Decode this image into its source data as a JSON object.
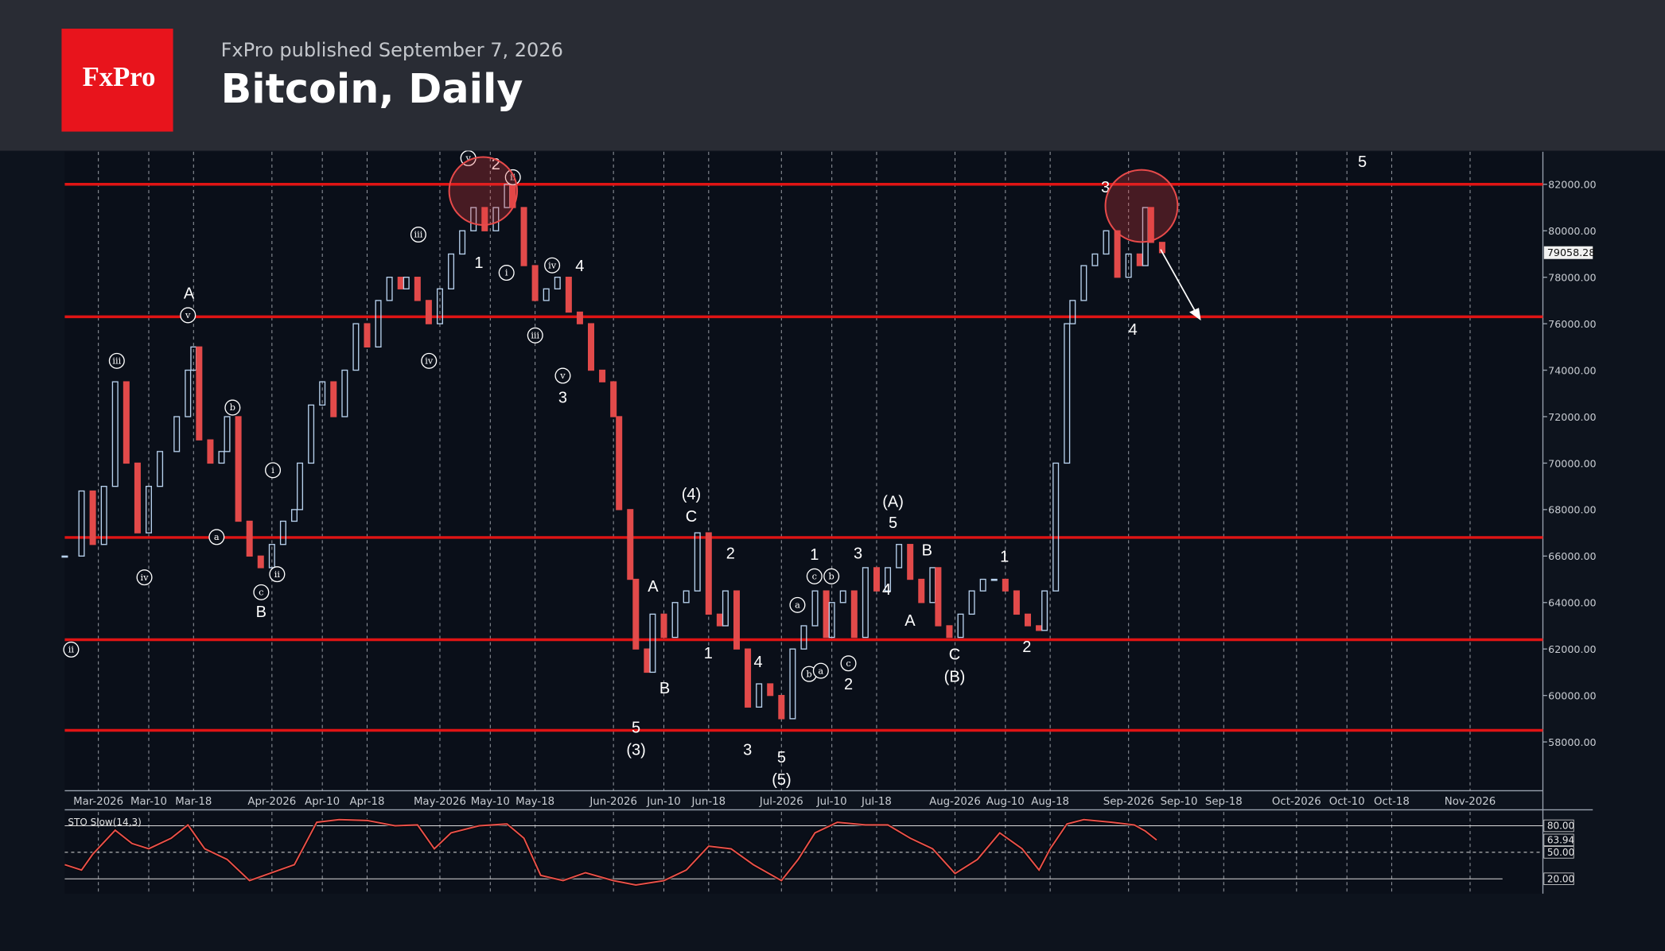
{
  "header": {
    "logo": "FxPro",
    "published": "FxPro published September 7, 2026",
    "title": "Bitcoin, Daily"
  },
  "chart_data": [
    {
      "type": "candlestick",
      "up_color": "#b8d2ee",
      "down_color": "#e24a4a",
      "level_color": "#e01414",
      "xlim": [
        54,
        318
      ],
      "ylim": [
        55900,
        83400
      ],
      "xticks": [
        {
          "value": 60,
          "label": "Mar-2026"
        },
        {
          "value": 69,
          "label": "Mar-10"
        },
        {
          "value": 77,
          "label": "Mar-18"
        },
        {
          "value": 91,
          "label": "Apr-2026"
        },
        {
          "value": 100,
          "label": "Apr-10"
        },
        {
          "value": 108,
          "label": "Apr-18"
        },
        {
          "value": 121,
          "label": "May-2026"
        },
        {
          "value": 130,
          "label": "May-10"
        },
        {
          "value": 138,
          "label": "May-18"
        },
        {
          "value": 152,
          "label": "Jun-2026"
        },
        {
          "value": 161,
          "label": "Jun-10"
        },
        {
          "value": 169,
          "label": "Jun-18"
        },
        {
          "value": 182,
          "label": "Jul-2026"
        },
        {
          "value": 191,
          "label": "Jul-10"
        },
        {
          "value": 199,
          "label": "Jul-18"
        },
        {
          "value": 213,
          "label": "Aug-2026"
        },
        {
          "value": 222,
          "label": "Aug-10"
        },
        {
          "value": 230,
          "label": "Aug-18"
        },
        {
          "value": 244,
          "label": "Sep-2026"
        },
        {
          "value": 253,
          "label": "Sep-10"
        },
        {
          "value": 261,
          "label": "Sep-18"
        },
        {
          "value": 274,
          "label": "Oct-2026"
        },
        {
          "value": 283,
          "label": "Oct-10"
        },
        {
          "value": 291,
          "label": "Oct-18"
        },
        {
          "value": 305,
          "label": "Nov-2026"
        }
      ],
      "yticks": [
        {
          "value": 82000,
          "label": "82000.00"
        },
        {
          "value": 80000,
          "label": "80000.00"
        },
        {
          "value": 78000,
          "label": "78000.00"
        },
        {
          "value": 76000,
          "label": "76000.00"
        },
        {
          "value": 74000,
          "label": "74000.00"
        },
        {
          "value": 72000,
          "label": "72000.00"
        },
        {
          "value": 70000,
          "label": "70000.00"
        },
        {
          "value": 68000,
          "label": "68000.00"
        },
        {
          "value": 66000,
          "label": "66000.00"
        },
        {
          "value": 64000,
          "label": "64000.00"
        },
        {
          "value": 62000,
          "label": "62000.00"
        },
        {
          "value": 60000,
          "label": "60000.00"
        },
        {
          "value": 58000,
          "label": "58000.00"
        }
      ],
      "levels": [
        82000,
        76300,
        66800,
        62400,
        58500
      ],
      "x": [
        54,
        57,
        59,
        61,
        63,
        65,
        67,
        69,
        71,
        74,
        76,
        77,
        78,
        80,
        82,
        83,
        85,
        87,
        89,
        91,
        93,
        95,
        96,
        98,
        100,
        102,
        104,
        106,
        108,
        110,
        112,
        114,
        115,
        117,
        119,
        121,
        123,
        125,
        127,
        129,
        131,
        133,
        134,
        136,
        138,
        140,
        142,
        144,
        146,
        148,
        150,
        152,
        153,
        155,
        156,
        158,
        159,
        161,
        163,
        165,
        167,
        169,
        171,
        172,
        174,
        176,
        178,
        180,
        182,
        184,
        186,
        188,
        190,
        191,
        193,
        195,
        197,
        199,
        201,
        203,
        205,
        207,
        209,
        210,
        212,
        214,
        216,
        218,
        220,
        222,
        224,
        226,
        228,
        229,
        231,
        233,
        234,
        236,
        238,
        240,
        242,
        244,
        246,
        247,
        248,
        250
      ],
      "values": [
        66000,
        68800,
        66500,
        69000,
        73500,
        70000,
        67000,
        69000,
        70500,
        72000,
        74000,
        75000,
        71000,
        70000,
        70500,
        72000,
        67500,
        66000,
        65500,
        66500,
        67500,
        68000,
        70000,
        72500,
        73500,
        72000,
        74000,
        76000,
        75000,
        77000,
        78000,
        77500,
        78000,
        77000,
        76000,
        77500,
        79000,
        80000,
        81000,
        80000,
        81000,
        82000,
        81000,
        78500,
        77000,
        77500,
        78000,
        76500,
        76000,
        74000,
        73500,
        72000,
        68000,
        65000,
        62000,
        61000,
        63500,
        62500,
        64000,
        64500,
        67000,
        63500,
        63000,
        64500,
        62000,
        59500,
        60500,
        60000,
        59000,
        62000,
        63000,
        64500,
        62500,
        64000,
        64500,
        62500,
        65500,
        64500,
        65500,
        66500,
        65000,
        64000,
        65500,
        63000,
        62500,
        63500,
        64500,
        65000,
        65000,
        64500,
        63500,
        63000,
        62800,
        64500,
        70000,
        76000,
        77000,
        78500,
        79000,
        80000,
        78000,
        79000,
        78500,
        81000,
        79500,
        79058.28
      ],
      "annotations": [
        "v",
        "ii",
        "iii",
        "iv",
        "i",
        "iv",
        "iii",
        "v",
        "iii",
        "v",
        "b",
        "a",
        "i",
        "iv",
        "c",
        "ii",
        "ii",
        "c",
        "b",
        "a",
        "b",
        "a",
        "c",
        "2",
        "1",
        "4",
        "3",
        "A",
        "B",
        "(4)",
        "C",
        "2",
        "A",
        "1",
        "B",
        "5",
        "(3)",
        "4",
        "3",
        "5",
        "(5)",
        "1",
        "3",
        "2",
        "(A)",
        "5",
        "B",
        "4",
        "A",
        "C",
        "(B)",
        "1",
        "2",
        "3",
        "4",
        "5"
      ]
    },
    {
      "type": "line",
      "title": "STO Slow(14,3)",
      "color": "#e8504a",
      "xlim": [
        54,
        318
      ],
      "ylim": [
        3.2,
        95.6
      ],
      "yticks": [
        {
          "value": 80,
          "label": "80.00"
        },
        {
          "value": 50,
          "label": "50.00"
        },
        {
          "value": 20,
          "label": "20.00"
        }
      ],
      "x": [
        54,
        57,
        59,
        63,
        66,
        69,
        73,
        76,
        79,
        83,
        87,
        91,
        95,
        99,
        103,
        108,
        113,
        117,
        120,
        123,
        128,
        133,
        136,
        139,
        143,
        147,
        152,
        156,
        161,
        165,
        169,
        173,
        177,
        182,
        185,
        188,
        192,
        197,
        201,
        205,
        209,
        213,
        217,
        221,
        225,
        228,
        230,
        233,
        236,
        241,
        245,
        247,
        249
      ],
      "values": [
        36,
        30,
        48,
        75,
        60,
        54,
        66,
        81,
        54,
        42,
        18,
        27,
        36,
        84,
        87,
        86,
        80,
        81,
        54,
        72,
        80,
        82,
        66,
        24,
        18,
        27,
        18,
        13,
        18,
        30,
        57,
        54,
        36,
        18,
        42,
        72,
        84,
        81,
        81,
        66,
        54,
        26,
        42,
        72,
        54,
        30,
        54,
        82,
        87,
        84,
        81,
        74,
        63.94
      ]
    }
  ]
}
